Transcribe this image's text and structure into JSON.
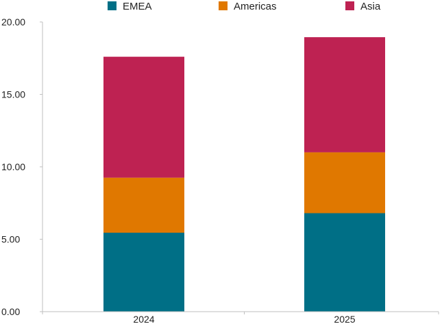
{
  "chart_data": {
    "type": "bar",
    "stacked": true,
    "categories": [
      "2024",
      "2025"
    ],
    "series": [
      {
        "name": "EMEA",
        "values": [
          5.45,
          6.8
        ],
        "color": "#006F86"
      },
      {
        "name": "Americas",
        "values": [
          3.8,
          4.2
        ],
        "color": "#E07800"
      },
      {
        "name": "Asia",
        "values": [
          8.35,
          7.95
        ],
        "color": "#BE2252"
      }
    ],
    "ylim": [
      0,
      20
    ],
    "yticks": [
      "0.00",
      "5.00",
      "10.00",
      "15.00",
      "20.00"
    ],
    "legend_position": "top",
    "grid": false
  }
}
